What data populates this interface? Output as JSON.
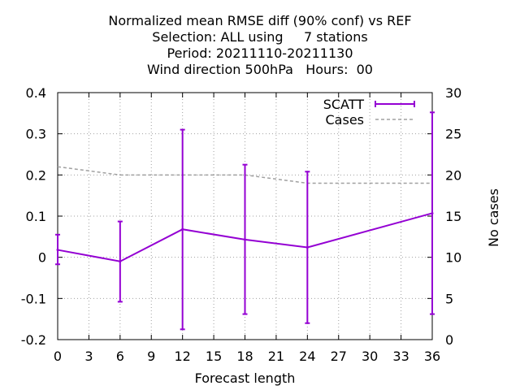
{
  "chart_data": {
    "type": "line",
    "title_lines": [
      "Normalized mean RMSE diff (90% conf) vs REF",
      "Selection: ALL using     7 stations",
      "Period: 20211110-20211130",
      "Wind direction 500hPa   Hours:  00"
    ],
    "xlabel": "Forecast length",
    "ylabel": "",
    "y2label": "No cases",
    "xlim": [
      0,
      36
    ],
    "ylim": [
      -0.2,
      0.4
    ],
    "y2lim": [
      0,
      30
    ],
    "xticks": [
      "0",
      "3",
      "6",
      "9",
      "12",
      "15",
      "18",
      "21",
      "24",
      "27",
      "30",
      "33",
      "36"
    ],
    "yticks": [
      "-0.2",
      "-0.1",
      "0",
      "0.1",
      "0.2",
      "0.3",
      "0.4"
    ],
    "y2ticks": [
      "0",
      "5",
      "10",
      "15",
      "20",
      "25",
      "30"
    ],
    "grid": true,
    "legend_position": "top-right",
    "series": [
      {
        "name": "SCATT",
        "axis": "left",
        "style": "errorbar-line",
        "color": "#9400d3",
        "x": [
          0,
          6,
          12,
          18,
          24,
          36
        ],
        "y": [
          0.018,
          -0.01,
          0.068,
          0.043,
          0.024,
          0.107
        ],
        "err_low": [
          -0.017,
          -0.108,
          -0.175,
          -0.138,
          -0.16,
          -0.138
        ],
        "err_high": [
          0.055,
          0.087,
          0.31,
          0.225,
          0.208,
          0.352
        ]
      },
      {
        "name": "Cases",
        "axis": "right",
        "style": "dashed",
        "color": "#a0a0a0",
        "x": [
          0,
          6,
          12,
          18,
          24,
          36
        ],
        "y": [
          21,
          20,
          20,
          20,
          19,
          19
        ]
      }
    ]
  }
}
